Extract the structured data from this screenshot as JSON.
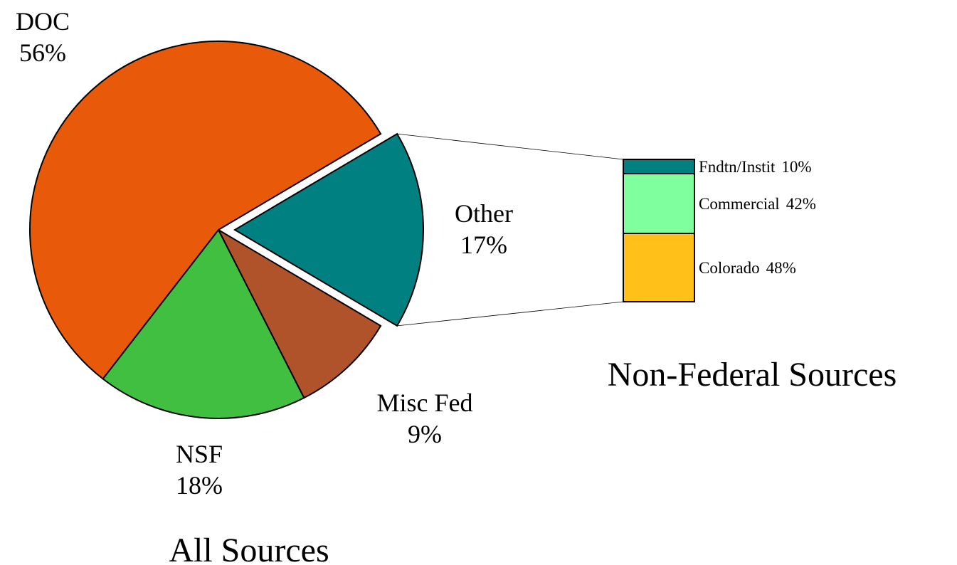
{
  "chart_data": [
    {
      "type": "pie",
      "title": "All Sources",
      "categories": [
        "Other",
        "Misc Fed",
        "NSF",
        "DOC"
      ],
      "values": [
        17,
        9,
        18,
        56
      ],
      "value_labels": [
        "17%",
        "9%",
        "18%",
        "56%"
      ],
      "colors": [
        "#008080",
        "#b0532a",
        "#40bf40",
        "#e85a0a"
      ],
      "exploded": "Other"
    },
    {
      "type": "bar",
      "title": "Non-Federal Sources",
      "stacked": true,
      "series": [
        {
          "name": "Colorado",
          "color": "#ffc01a",
          "values": [
            48
          ],
          "value_labels": [
            "48%"
          ]
        },
        {
          "name": "Commercial",
          "color": "#80ff9f",
          "values": [
            42
          ],
          "value_labels": [
            "42%"
          ]
        },
        {
          "name": "Fndtn/Instit",
          "color": "#008080",
          "values": [
            10
          ],
          "value_labels": [
            "10%"
          ]
        }
      ]
    }
  ]
}
